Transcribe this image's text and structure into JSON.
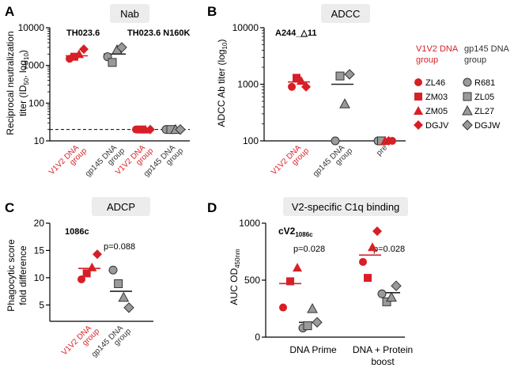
{
  "colors": {
    "red": "#d71f26",
    "gray": "#9a9a9a",
    "dark": "#333333",
    "titlebox": "#ececec"
  },
  "legend": {
    "v1v2_title_1": "V1V2 DNA",
    "v1v2_title_2": "group",
    "gp145_title_1": "gp145 DNA",
    "gp145_title_2": "group",
    "v1v2_items": [
      {
        "shape": "circle",
        "label": "ZL46"
      },
      {
        "shape": "square",
        "label": "ZM03"
      },
      {
        "shape": "triangle",
        "label": "ZM05"
      },
      {
        "shape": "diamond",
        "label": "DGJV"
      }
    ],
    "gp145_items": [
      {
        "shape": "circle",
        "label": "R681"
      },
      {
        "shape": "square",
        "label": "ZL05"
      },
      {
        "shape": "triangle",
        "label": "ZL27"
      },
      {
        "shape": "diamond",
        "label": "DGJW"
      }
    ]
  },
  "chart_data": [
    {
      "panel": "A",
      "type": "scatter",
      "title": "Nab",
      "ylabel_1": "Reciprocal neutralization",
      "ylabel_2": "titer (ID",
      "ylabel_sub": "50",
      "ylabel_3": ", log",
      "ylabel_sub2": "10",
      "ylabel_4": ")",
      "yscale": "log",
      "ylim": [
        10,
        10000
      ],
      "yticks": [
        {
          "v": 10,
          "t": "10"
        },
        {
          "v": 100,
          "t": "100"
        },
        {
          "v": 1000,
          "t": "1000"
        },
        {
          "v": 10000,
          "t": "10000"
        }
      ],
      "reference_line": 20,
      "annotations": [
        "TH023.6",
        "TH023.6 N160K"
      ],
      "groups": [
        {
          "label_1": "V1V2 DNA",
          "label_2": "group",
          "color": "red",
          "median": 1800,
          "points": [
            {
              "shape": "circle",
              "y": 1500
            },
            {
              "shape": "square",
              "y": 1700
            },
            {
              "shape": "triangle",
              "y": 2000
            },
            {
              "shape": "diamond",
              "y": 2700
            }
          ]
        },
        {
          "label_1": "gp145 DNA",
          "label_2": "group",
          "color": "gray",
          "median": 2000,
          "points": [
            {
              "shape": "circle",
              "y": 1700
            },
            {
              "shape": "square",
              "y": 1200
            },
            {
              "shape": "triangle",
              "y": 2600
            },
            {
              "shape": "diamond",
              "y": 3000
            }
          ]
        },
        {
          "label_1": "V1V2 DNA",
          "label_2": "group",
          "color": "red",
          "median": 20,
          "points": [
            {
              "shape": "circle",
              "y": 20
            },
            {
              "shape": "square",
              "y": 20
            },
            {
              "shape": "triangle",
              "y": 20
            },
            {
              "shape": "diamond",
              "y": 20
            }
          ]
        },
        {
          "label_1": "gp145 DNA",
          "label_2": "group",
          "color": "gray",
          "median": 20,
          "points": [
            {
              "shape": "circle",
              "y": 20
            },
            {
              "shape": "square",
              "y": 20
            },
            {
              "shape": "triangle",
              "y": 20
            },
            {
              "shape": "diamond",
              "y": 20
            }
          ]
        }
      ]
    },
    {
      "panel": "B",
      "type": "scatter",
      "title": "ADCC",
      "ylabel_1": "ADCC Ab  titer (log",
      "ylabel_sub": "10",
      "ylabel_2": ")",
      "yscale": "log",
      "ylim": [
        100,
        10000
      ],
      "yticks": [
        {
          "v": 100,
          "t": "100"
        },
        {
          "v": 1000,
          "t": "1000"
        },
        {
          "v": 10000,
          "t": "10000"
        }
      ],
      "annotations": [
        "A244_△11"
      ],
      "groups": [
        {
          "label_1": "V1V2 DNA",
          "label_2": "group",
          "color": "red",
          "median": 1100,
          "points": [
            {
              "shape": "circle",
              "y": 900
            },
            {
              "shape": "square",
              "y": 1300
            },
            {
              "shape": "triangle",
              "y": 1150
            },
            {
              "shape": "diamond",
              "y": 900
            }
          ]
        },
        {
          "label_1": "gp145 DNA",
          "label_2": "group",
          "color": "gray",
          "median": 1000,
          "points": [
            {
              "shape": "circle",
              "y": 100
            },
            {
              "shape": "square",
              "y": 1400
            },
            {
              "shape": "triangle",
              "y": 450
            },
            {
              "shape": "diamond",
              "y": 1500
            }
          ]
        },
        {
          "label_1": "pre",
          "label_2": "",
          "color": "mixed",
          "median": 100,
          "points": [
            {
              "shape": "circle",
              "y": 100,
              "c": "gray"
            },
            {
              "shape": "square",
              "y": 100,
              "c": "gray"
            },
            {
              "shape": "triangle",
              "y": 100,
              "c": "red"
            },
            {
              "shape": "diamond",
              "y": 100,
              "c": "red"
            },
            {
              "shape": "circle",
              "y": 100,
              "c": "red"
            }
          ]
        }
      ]
    },
    {
      "panel": "C",
      "type": "scatter",
      "title": "ADCP",
      "ylabel_1": "Phagocytic score",
      "ylabel_2": "fold difference",
      "yscale": "linear",
      "ylim": [
        2,
        20
      ],
      "yticks": [
        {
          "v": 5,
          "t": "5"
        },
        {
          "v": 10,
          "t": "10"
        },
        {
          "v": 15,
          "t": "15"
        },
        {
          "v": 20,
          "t": "20"
        }
      ],
      "annotations": [
        "1086c",
        "p=0.088"
      ],
      "groups": [
        {
          "label_1": "V1V2 DNA",
          "label_2": "group",
          "color": "red",
          "median": 11.7,
          "points": [
            {
              "shape": "circle",
              "y": 9.7
            },
            {
              "shape": "square",
              "y": 10.8
            },
            {
              "shape": "triangle",
              "y": 11.9
            },
            {
              "shape": "diamond",
              "y": 14.3
            }
          ]
        },
        {
          "label_1": "gp145 DNA",
          "label_2": "group",
          "color": "gray",
          "median": 7.5,
          "points": [
            {
              "shape": "circle",
              "y": 11.4
            },
            {
              "shape": "square",
              "y": 8.9
            },
            {
              "shape": "triangle",
              "y": 6.4
            },
            {
              "shape": "diamond",
              "y": 4.5
            }
          ]
        }
      ]
    },
    {
      "panel": "D",
      "type": "scatter",
      "title": "V2-specific C1q binding",
      "ylabel_1": "AUC OD",
      "ylabel_sub": "450nm",
      "yscale": "linear",
      "ylim": [
        0,
        1000
      ],
      "yticks": [
        {
          "v": 0,
          "t": "0"
        },
        {
          "v": 500,
          "t": "500"
        },
        {
          "v": 1000,
          "t": "1000"
        }
      ],
      "annotations": [
        "cV2",
        "1086c",
        "p=0.028",
        "p=0.028"
      ],
      "xlabels": [
        "DNA Prime",
        "DNA + Protein",
        "boost"
      ],
      "groups": [
        {
          "label_1": "DNA Prime",
          "color": "red",
          "median": 470,
          "points": [
            {
              "shape": "circle",
              "y": 260
            },
            {
              "shape": "square",
              "y": 490
            },
            {
              "shape": "triangle",
              "y": 610
            }
          ]
        },
        {
          "label_1": "DNA Prime",
          "color": "gray",
          "median": 130,
          "points": [
            {
              "shape": "circle",
              "y": 80
            },
            {
              "shape": "square",
              "y": 100
            },
            {
              "shape": "triangle",
              "y": 250
            },
            {
              "shape": "diamond",
              "y": 130
            }
          ]
        },
        {
          "label_1": "DNA + Protein boost",
          "color": "red",
          "median": 720,
          "points": [
            {
              "shape": "circle",
              "y": 660
            },
            {
              "shape": "square",
              "y": 520
            },
            {
              "shape": "triangle",
              "y": 790
            },
            {
              "shape": "diamond",
              "y": 930
            }
          ]
        },
        {
          "label_1": "DNA + Protein boost",
          "color": "gray",
          "median": 390,
          "points": [
            {
              "shape": "circle",
              "y": 380
            },
            {
              "shape": "square",
              "y": 310
            },
            {
              "shape": "triangle",
              "y": 350
            },
            {
              "shape": "diamond",
              "y": 450
            }
          ]
        }
      ]
    }
  ]
}
